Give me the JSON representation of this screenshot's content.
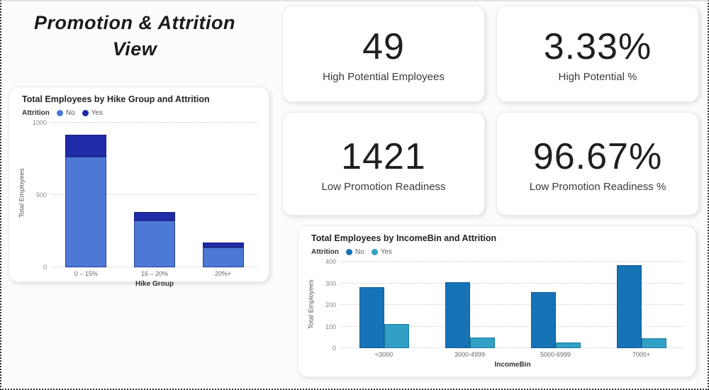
{
  "page": {
    "title": "Promotion & Attrition View"
  },
  "cards": [
    {
      "value": "49",
      "label": "High Potential Employees"
    },
    {
      "value": "3.33%",
      "label": "High Potential %"
    },
    {
      "value": "1421",
      "label": "Low Promotion Readiness"
    },
    {
      "value": "96.67%",
      "label": "Low Promotion Readiness %"
    }
  ],
  "chart_data": [
    {
      "type": "bar",
      "stacked": true,
      "title": "Total Employees by Hike Group and Attrition",
      "legend_title": "Attrition",
      "legend_position": "top",
      "categories": [
        "0 – 15%",
        "16 – 20%",
        "20%+"
      ],
      "series": [
        {
          "name": "No",
          "color": "#4C78D6",
          "border": "#2b3f9e",
          "values": [
            765,
            326,
            136
          ]
        },
        {
          "name": "Yes",
          "color": "#1F2BA8",
          "border": "#141c7a",
          "values": [
            154,
            54,
            35
          ]
        }
      ],
      "xlabel": "Hike Group",
      "ylabel": "Total Employees",
      "ylim": [
        0,
        1000
      ],
      "yticks": [
        0,
        500,
        1000
      ],
      "grid": true
    },
    {
      "type": "bar",
      "stacked": false,
      "title": "Total Employees by IncomeBin and Attrition",
      "legend_title": "Attrition",
      "legend_position": "top",
      "categories": [
        "<3000",
        "3000-4999",
        "5000-6999",
        "7000+"
      ],
      "series": [
        {
          "name": "No",
          "color": "#1673B6",
          "border": "#0f5c94",
          "values": [
            283,
            305,
            260,
            385
          ]
        },
        {
          "name": "Yes",
          "color": "#31A0C6",
          "border": "#1b7da0",
          "values": [
            110,
            48,
            25,
            45
          ]
        }
      ],
      "xlabel": "IncomeBin",
      "ylabel": "Total Employees",
      "ylim": [
        0,
        400
      ],
      "yticks": [
        0,
        100,
        200,
        300,
        400
      ],
      "grid": true
    }
  ],
  "colors": {
    "accent_blue": "#4C78D6",
    "dark_blue": "#1F2BA8",
    "steel_blue": "#1673B6",
    "teal_blue": "#31A0C6"
  }
}
